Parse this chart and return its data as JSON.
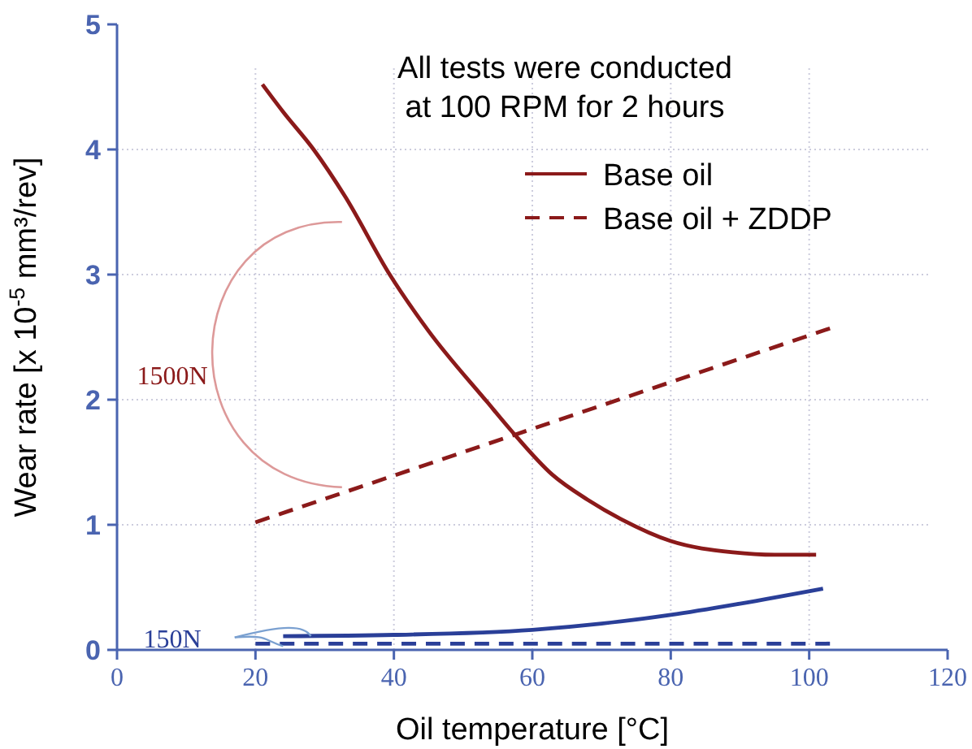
{
  "chart_data": {
    "type": "line",
    "xlabel": "Oil temperature [°C]",
    "ylabel": "Wear rate [x 10$^{-5}$ mm³/rev]",
    "xlim": [
      0,
      120
    ],
    "xticks": [
      0,
      20,
      40,
      60,
      80,
      100,
      120
    ],
    "ylim": [
      0,
      5
    ],
    "yticks": [
      0,
      1,
      2,
      3,
      4,
      5
    ],
    "grid": true,
    "legend": "top right",
    "marker": "none",
    "series": [
      {
        "name": "Base oil",
        "color": "#8b1a1a",
        "line_style": "solid",
        "x": [
          21,
          24,
          28.4,
          33,
          39.4,
          45,
          53.5,
          57,
          62.9,
          68,
          73,
          80,
          89,
          95,
          101
        ],
        "values": [
          4.52,
          4.3,
          4.0,
          3.62,
          3.0,
          2.55,
          1.98,
          1.75,
          1.4,
          1.2,
          1.04,
          0.87,
          0.78,
          0.76,
          0.76
        ]
      },
      {
        "name": "Base oil + ZDDP",
        "color": "#8b1a1a",
        "line_style": "dashed",
        "x": [
          20,
          103
        ],
        "values": [
          1.02,
          2.57
        ]
      },
      {
        "color": "#2a3f98",
        "line_style": "solid",
        "x": [
          24,
          40,
          60,
          70,
          80,
          90,
          102
        ],
        "values": [
          0.11,
          0.12,
          0.16,
          0.21,
          0.28,
          0.37,
          0.49
        ]
      },
      {
        "color": "#2a3f98",
        "line_style": "dashed",
        "x": [
          20,
          103
        ],
        "values": [
          0.05,
          0.05
        ]
      }
    ],
    "annotations": [
      "All tests were conducted\nat 100 RPM for 2 hours",
      "1500N",
      {
        "text": "150N",
        "x": 28,
        "y": 0.11
      }
    ]
  }
}
